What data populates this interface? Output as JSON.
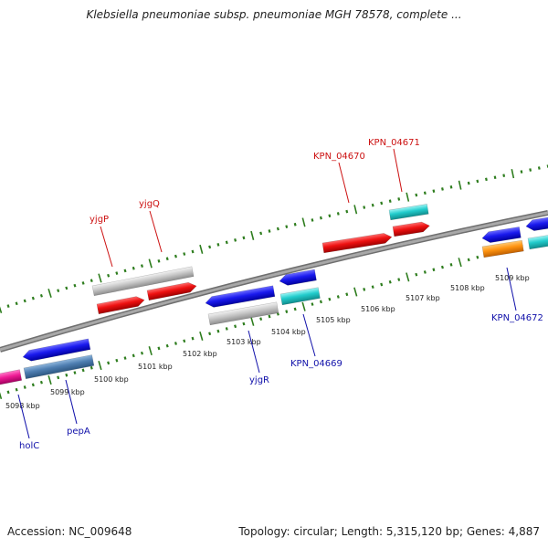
{
  "title": "Klebsiella pneumoniae subsp. pneumoniae MGH 78578, complete ...",
  "footer": {
    "accession": "Accession: NC_009648",
    "info": "Topology: circular; Length: 5,315,120 bp; Genes: 4,887"
  },
  "colors": {
    "backbone": "#8a8a8a",
    "ruler": "#2e7d1e",
    "plus_label": "#cc1111",
    "minus_label": "#1111aa"
  },
  "ticks": [
    "5098 kbp",
    "5099 kbp",
    "5100 kbp",
    "5101 kbp",
    "5102 kbp",
    "5103 kbp",
    "5104 kbp",
    "5105 kbp",
    "5106 kbp",
    "5107 kbp",
    "5108 kbp",
    "5109 kbp"
  ],
  "plus_labels": [
    "yjgP",
    "yjgQ",
    "KPN_04670",
    "KPN_04671"
  ],
  "minus_labels": [
    "holC",
    "pepA",
    "yjgR",
    "KPN_04669",
    "KPN_04672"
  ]
}
